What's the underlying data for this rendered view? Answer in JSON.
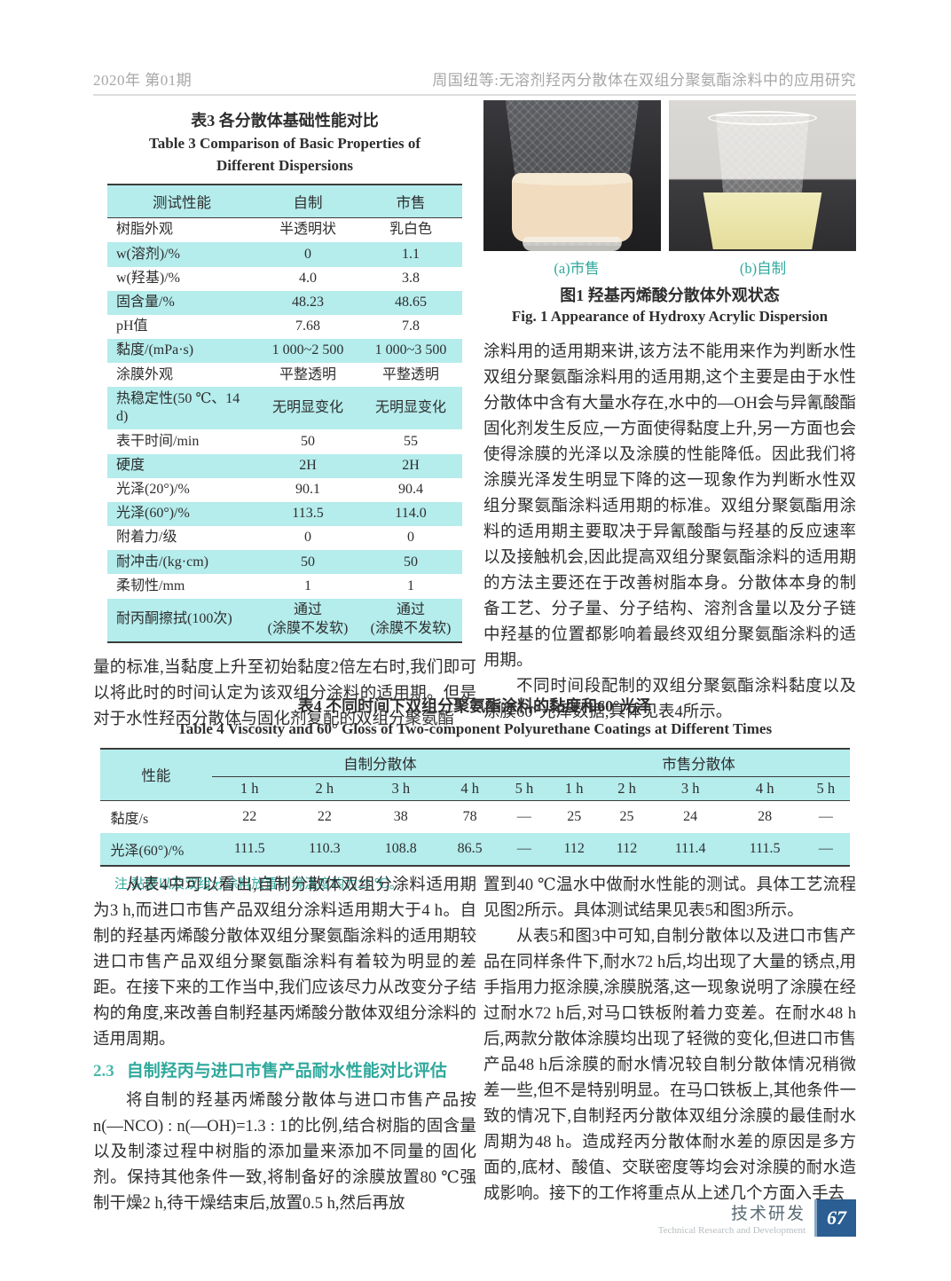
{
  "header": {
    "issue": "2020年 第01期",
    "running_title": "周国纽等:无溶剂羟丙分散体在双组分聚氨酯涂料中的应用研究"
  },
  "colors": {
    "table_band_cyan": "#b5ecec",
    "accent_teal": "#2fa99c",
    "footer_badge_blue": "#2b5e92"
  },
  "table3": {
    "title_cn": "表3  各分散体基础性能对比",
    "title_en": "Table 3   Comparison of Basic Properties of Different Dispersions",
    "columns": [
      "测试性能",
      "自制",
      "市售"
    ],
    "rows": [
      [
        "树脂外观",
        "半透明状",
        "乳白色"
      ],
      [
        "w(溶剂)/%",
        "0",
        "1.1"
      ],
      [
        "w(羟基)/%",
        "4.0",
        "3.8"
      ],
      [
        "固含量/%",
        "48.23",
        "48.65"
      ],
      [
        "pH值",
        "7.68",
        "7.8"
      ],
      [
        "黏度/(mPa·s)",
        "1 000~2 500",
        "1 000~3 500"
      ],
      [
        "涂膜外观",
        "平整透明",
        "平整透明"
      ],
      [
        "热稳定性(50 ℃、14 d)",
        "无明显变化",
        "无明显变化"
      ],
      [
        "表干时间/min",
        "50",
        "55"
      ],
      [
        "硬度",
        "2H",
        "2H"
      ],
      [
        "光泽(20°)/%",
        "90.1",
        "90.4"
      ],
      [
        "光泽(60°)/%",
        "113.5",
        "114.0"
      ],
      [
        "附着力/级",
        "0",
        "0"
      ],
      [
        "耐冲击/(kg·cm)",
        "50",
        "50"
      ],
      [
        "柔韧性/mm",
        "1",
        "1"
      ],
      [
        "耐丙酮擦拭(100次)",
        "通过\n(涂膜不发软)",
        "通过\n(涂膜不发软)"
      ]
    ]
  },
  "figure1": {
    "label_a": "(a)市售",
    "label_b": "(b)自制",
    "caption_cn": "图1  羟基丙烯酸分散体外观状态",
    "caption_en": "Fig. 1   Appearance of Hydroxy Acrylic Dispersion"
  },
  "body": {
    "left_after_table3": "量的标准,当黏度上升至初始黏度2倍左右时,我们即可以将此时的时间认定为该双组分涂料的适用期。但是对于水性羟丙分散体与固化剂复配的双组分聚氨酯",
    "right_para1": "涂料用的适用期来讲,该方法不能用来作为判断水性双组分聚氨酯涂料用的适用期,这个主要是由于水性分散体中含有大量水存在,水中的—OH会与异氰酸酯固化剂发生反应,一方面使得黏度上升,另一方面也会使得涂膜的光泽以及涂膜的性能降低。因此我们将涂膜光泽发生明显下降的这一现象作为判断水性双组分聚氨酯涂料适用期的标准。双组分聚氨酯用涂料的适用期主要取决于异氰酸酯与羟基的反应速率以及接触机会,因此提高双组分聚氨酯涂料的适用期的方法主要还在于改善树脂本身。分散体本身的制备工艺、分子量、分子结构、溶剂含量以及分子链中羟基的位置都影响着最终双组分聚氨酯涂料的适用期。",
    "right_para2": "不同时间段配制的双组分聚氨酯涂料黏度以及涂膜60°光泽数据,具体见表4所示。",
    "bottom_left_para1": "从表4中可以看出,自制分散体双组分涂料适用期为3 h,而进口市售产品双组分涂料适用期大于4 h。自制的羟基丙烯酸分散体双组分聚氨酯涂料的适用期较进口市售产品双组分聚氨酯涂料有着较为明显的差距。在接下来的工作当中,我们应该尽力从改变分子结构的角度,来改善自制羟基丙烯酸分散体双组分涂料的适用周期。",
    "section_heading_num": "2.3",
    "section_heading_text": "自制羟丙与进口市售产品耐水性能对比评估",
    "bottom_left_para2": "将自制的羟基丙烯酸分散体与进口市售产品按n(—NCO) : n(—OH)=1.3 : 1的比例,结合树脂的固含量以及制漆过程中树脂的添加量来添加不同量的固化剂。保持其他条件一致,将制备好的涂膜放置80 ℃强制干燥2 h,待干燥结束后,放置0.5 h,然后再放",
    "bottom_right_para1": "置到40 ℃温水中做耐水性能的测试。具体工艺流程见图2所示。具体测试结果见表5和图3所示。",
    "bottom_right_para2": "从表5和图3中可知,自制分散体以及进口市售产品在同样条件下,耐水72 h后,均出现了大量的锈点,用手指用力抠涂膜,涂膜脱落,这一现象说明了涂膜在经过耐水72 h后,对马口铁板附着力变差。在耐水48 h后,两款分散体涂膜均出现了轻微的变化,但进口市售产品48 h后涂膜的耐水情况较自制分散体情况稍微差一些,但不是特别明显。在马口铁板上,其他条件一致的情况下,自制羟丙分散体双组分涂膜的最佳耐水周期为48 h。造成羟丙分散体耐水差的原因是多方面的,底材、酸值、交联密度等均会对涂膜的耐水造成影响。接下的工作将重点从上述几个方面入手去"
  },
  "table4": {
    "title_cn": "表4  不同时间下双组分聚氨酯涂料的黏度和60°光泽",
    "title_en": "Table 4   Viscosity and 60° Gloss of Two-component Polyurethane Coatings at Different Times",
    "col_property": "性能",
    "group_homemade": "自制分散体",
    "group_commercial": "市售分散体",
    "hours": [
      "1 h",
      "2 h",
      "3 h",
      "4 h",
      "5 h"
    ],
    "rows": [
      {
        "label": "黏度/s",
        "homemade": [
          "22",
          "22",
          "38",
          "78",
          "—"
        ],
        "commercial": [
          "25",
          "25",
          "24",
          "28",
          "—"
        ]
      },
      {
        "label": "光泽(60°)/%",
        "homemade": [
          "111.5",
          "110.3",
          "108.8",
          "86.5",
          "—"
        ],
        "commercial": [
          "112",
          "112",
          "111.4",
          "111.5",
          "—"
        ]
      }
    ],
    "note": "注:黏度以及双组分涂料放置环境温度均为25 ℃。"
  },
  "footer": {
    "section_cn": "技术研发",
    "section_en": "Technical Research and Development",
    "page_number": "67"
  }
}
